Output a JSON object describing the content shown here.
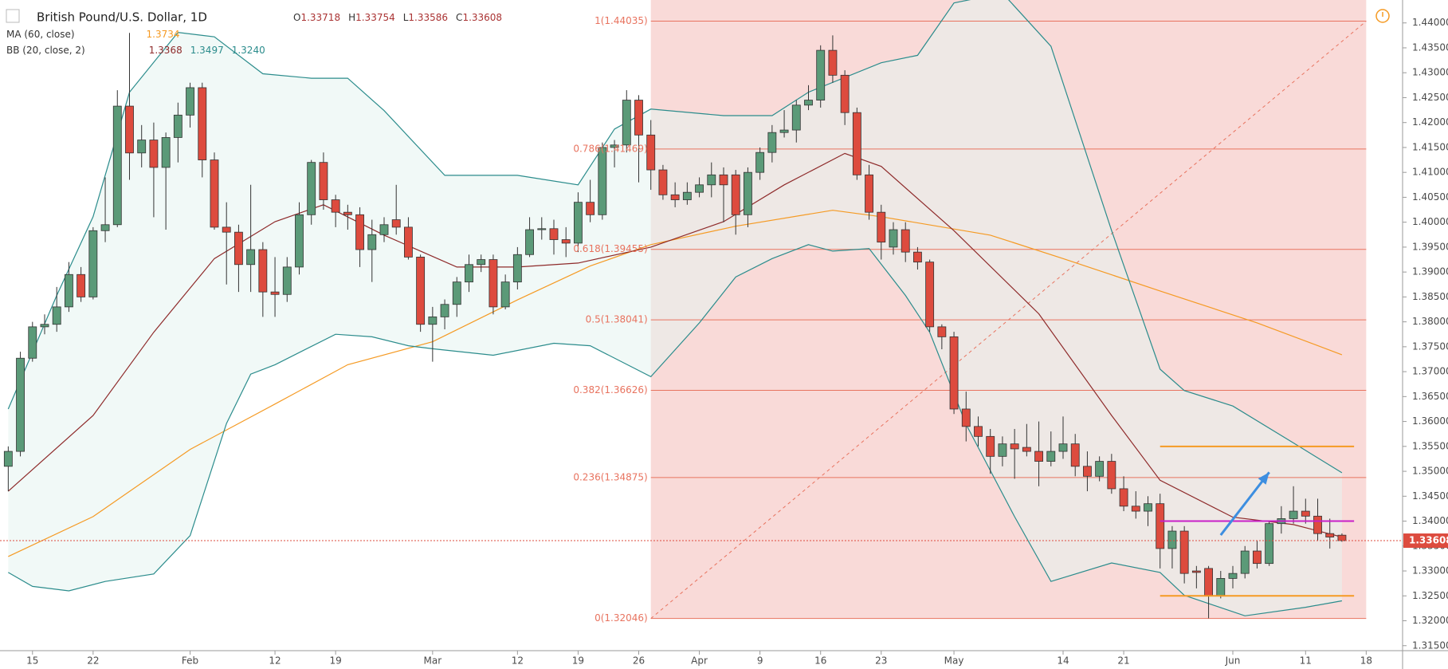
{
  "header": {
    "title": "British Pound/U.S. Dollar, 1D",
    "ohlc": [
      {
        "key": "O",
        "value": 1.33718
      },
      {
        "key": "H",
        "value": 1.33754
      },
      {
        "key": "L",
        "value": 1.33586
      },
      {
        "key": "C",
        "value": 1.33608
      }
    ],
    "ma": {
      "label": "MA (60, close)",
      "value": 1.3734
    },
    "bb": {
      "label": "BB (20, close, 2)",
      "values": [
        1.3368,
        1.3497,
        {
          "value": 1.324,
          "label": "1.3240"
        }
      ]
    }
  },
  "chart_data": {
    "type": "candlestick",
    "xlim": [
      -0.68,
      115
    ],
    "ylim": [
      1.314,
      1.4446
    ],
    "xticks": [
      {
        "value": 2,
        "label": "15"
      },
      {
        "value": 7,
        "label": "22"
      },
      {
        "value": 15,
        "label": "Feb"
      },
      {
        "value": 22,
        "label": "12"
      },
      {
        "value": 27,
        "label": "19"
      },
      {
        "value": 35,
        "label": "Mar"
      },
      {
        "value": 42,
        "label": "12"
      },
      {
        "value": 47,
        "label": "19"
      },
      {
        "value": 52,
        "label": "26"
      },
      {
        "value": 57,
        "label": "Apr"
      },
      {
        "value": 62,
        "label": "9"
      },
      {
        "value": 67,
        "label": "16"
      },
      {
        "value": 72,
        "label": "23"
      },
      {
        "value": 78,
        "label": "May"
      },
      {
        "value": 87,
        "label": "14"
      },
      {
        "value": 92,
        "label": "21"
      },
      {
        "value": 101,
        "label": "Jun"
      },
      {
        "value": 107,
        "label": "11"
      },
      {
        "value": 112,
        "label": "18"
      }
    ],
    "yticks": [
      {
        "value": 1.315,
        "label": "1.31500"
      },
      {
        "value": 1.32,
        "label": "1.32000"
      },
      {
        "value": 1.325,
        "label": "1.32500"
      },
      {
        "value": 1.33,
        "label": "1.33000"
      },
      {
        "value": 1.335,
        "label": "1.33500"
      },
      {
        "value": 1.34,
        "label": "1.34000"
      },
      {
        "value": 1.345,
        "label": "1.34500"
      },
      {
        "value": 1.35,
        "label": "1.35000"
      },
      {
        "value": 1.355,
        "label": "1.35500"
      },
      {
        "value": 1.36,
        "label": "1.36000"
      },
      {
        "value": 1.365,
        "label": "1.36500"
      },
      {
        "value": 1.37,
        "label": "1.37000"
      },
      {
        "value": 1.375,
        "label": "1.37500"
      },
      {
        "value": 1.38,
        "label": "1.38000"
      },
      {
        "value": 1.385,
        "label": "1.38500"
      },
      {
        "value": 1.39,
        "label": "1.39000"
      },
      {
        "value": 1.395,
        "label": "1.39500"
      },
      {
        "value": 1.4,
        "label": "1.40000"
      },
      {
        "value": 1.405,
        "label": "1.40500"
      },
      {
        "value": 1.41,
        "label": "1.41000"
      },
      {
        "value": 1.415,
        "label": "1.41500"
      },
      {
        "value": 1.42,
        "label": "1.42000"
      },
      {
        "value": 1.425,
        "label": "1.42500"
      },
      {
        "value": 1.43,
        "label": "1.43000"
      },
      {
        "value": 1.435,
        "label": "1.43500"
      },
      {
        "value": 1.44,
        "label": "1.44000"
      }
    ],
    "up_color": "#5b9a78",
    "down_color": "#dd4b3e",
    "open": [
      1.351,
      1.354,
      1.3727,
      1.379,
      1.3795,
      1.383,
      1.3895,
      1.385,
      1.3983,
      1.3995,
      1.4233,
      1.4139,
      1.4165,
      1.411,
      1.417,
      1.4215,
      1.427,
      1.4125,
      1.399,
      1.398,
      1.3915,
      1.3945,
      1.386,
      1.3855,
      1.391,
      1.4015,
      1.412,
      1.4045,
      1.402,
      1.4015,
      1.3945,
      1.3975,
      1.4005,
      1.399,
      1.393,
      1.3795,
      1.381,
      1.3835,
      1.388,
      1.3915,
      1.3925,
      1.383,
      1.388,
      1.3935,
      1.3985,
      1.3987,
      1.3965,
      1.3958,
      1.404,
      1.4015,
      1.415,
      1.4155,
      1.4245,
      1.4175,
      1.4105,
      1.4055,
      1.4045,
      1.406,
      1.4075,
      1.4095,
      1.4095,
      1.4015,
      1.41,
      1.414,
      1.418,
      1.4185,
      1.4235,
      1.4245,
      1.4345,
      1.4295,
      1.422,
      1.4095,
      1.402,
      1.395,
      1.3985,
      1.394,
      1.392,
      1.379,
      1.377,
      1.3625,
      1.359,
      1.357,
      1.353,
      1.3555,
      1.3548,
      1.354,
      1.352,
      1.354,
      1.3555,
      1.351,
      1.349,
      1.352,
      1.3465,
      1.343,
      1.342,
      1.3435,
      1.3345,
      1.338,
      1.33,
      1.3305,
      1.325,
      1.3285,
      1.3295,
      1.334,
      1.3315,
      1.3395,
      1.3405,
      1.342,
      1.341,
      1.3375,
      1.33718
    ],
    "high": [
      1.355,
      1.374,
      1.38,
      1.3815,
      1.387,
      1.392,
      1.391,
      1.399,
      1.409,
      1.4265,
      1.438,
      1.4195,
      1.42,
      1.418,
      1.424,
      1.428,
      1.428,
      1.414,
      1.404,
      1.3995,
      1.4075,
      1.396,
      1.393,
      1.393,
      1.404,
      1.4125,
      1.414,
      1.4055,
      1.4035,
      1.403,
      1.4005,
      1.401,
      1.4075,
      1.401,
      1.3935,
      1.383,
      1.3845,
      1.389,
      1.3935,
      1.3935,
      1.3935,
      1.3895,
      1.395,
      1.401,
      1.401,
      1.4005,
      1.399,
      1.406,
      1.4085,
      1.416,
      1.4165,
      1.4265,
      1.4255,
      1.4205,
      1.4115,
      1.408,
      1.408,
      1.409,
      1.412,
      1.411,
      1.4105,
      1.411,
      1.415,
      1.4195,
      1.4225,
      1.4245,
      1.4275,
      1.4355,
      1.4375,
      1.4305,
      1.423,
      1.4115,
      1.4035,
      1.4,
      1.4,
      1.395,
      1.3925,
      1.3795,
      1.378,
      1.366,
      1.361,
      1.3585,
      1.357,
      1.3585,
      1.3595,
      1.36,
      1.358,
      1.361,
      1.3575,
      1.354,
      1.353,
      1.3535,
      1.349,
      1.346,
      1.345,
      1.3455,
      1.339,
      1.339,
      1.331,
      1.331,
      1.33,
      1.331,
      1.335,
      1.336,
      1.34,
      1.343,
      1.347,
      1.3445,
      1.3445,
      1.3405,
      1.33754
    ],
    "low": [
      1.346,
      1.353,
      1.372,
      1.3775,
      1.378,
      1.382,
      1.384,
      1.3845,
      1.396,
      1.399,
      1.4085,
      1.411,
      1.401,
      1.3985,
      1.412,
      1.419,
      1.409,
      1.3985,
      1.3875,
      1.386,
      1.386,
      1.381,
      1.381,
      1.384,
      1.3895,
      1.3995,
      1.4025,
      1.399,
      1.3985,
      1.391,
      1.388,
      1.396,
      1.3975,
      1.3925,
      1.378,
      1.372,
      1.3785,
      1.381,
      1.386,
      1.39,
      1.3815,
      1.3825,
      1.3865,
      1.393,
      1.3965,
      1.3935,
      1.393,
      1.394,
      1.4,
      1.4005,
      1.411,
      1.414,
      1.408,
      1.4065,
      1.4045,
      1.403,
      1.4035,
      1.405,
      1.405,
      1.4,
      1.3975,
      1.399,
      1.4085,
      1.412,
      1.417,
      1.416,
      1.4225,
      1.423,
      1.428,
      1.4195,
      1.4085,
      1.4005,
      1.3925,
      1.3935,
      1.392,
      1.3905,
      1.378,
      1.3745,
      1.3615,
      1.356,
      1.355,
      1.3495,
      1.351,
      1.3485,
      1.353,
      1.347,
      1.351,
      1.3525,
      1.349,
      1.346,
      1.348,
      1.3455,
      1.342,
      1.3405,
      1.339,
      1.3305,
      1.3305,
      1.3275,
      1.3265,
      1.3205,
      1.3245,
      1.3265,
      1.3285,
      1.3305,
      1.331,
      1.3375,
      1.3395,
      1.3395,
      1.336,
      1.3345,
      1.33586
    ],
    "close": [
      1.354,
      1.3727,
      1.379,
      1.3795,
      1.383,
      1.3895,
      1.385,
      1.3983,
      1.3995,
      1.4233,
      1.4139,
      1.4165,
      1.411,
      1.417,
      1.4215,
      1.427,
      1.4125,
      1.399,
      1.398,
      1.3915,
      1.3945,
      1.386,
      1.3855,
      1.391,
      1.4015,
      1.412,
      1.4045,
      1.402,
      1.4015,
      1.3945,
      1.3975,
      1.3995,
      1.399,
      1.393,
      1.3795,
      1.381,
      1.3835,
      1.388,
      1.3915,
      1.3925,
      1.383,
      1.388,
      1.3935,
      1.3985,
      1.3987,
      1.3965,
      1.3958,
      1.404,
      1.4015,
      1.415,
      1.4155,
      1.4245,
      1.4175,
      1.4105,
      1.4055,
      1.4045,
      1.406,
      1.4075,
      1.4095,
      1.4075,
      1.4015,
      1.41,
      1.414,
      1.418,
      1.4185,
      1.4235,
      1.4245,
      1.4345,
      1.4295,
      1.422,
      1.4095,
      1.402,
      1.396,
      1.3985,
      1.394,
      1.392,
      1.379,
      1.377,
      1.3625,
      1.359,
      1.357,
      1.353,
      1.3555,
      1.3545,
      1.354,
      1.352,
      1.354,
      1.3555,
      1.351,
      1.349,
      1.352,
      1.3465,
      1.343,
      1.342,
      1.3435,
      1.3345,
      1.338,
      1.3295,
      1.3297,
      1.325,
      1.3285,
      1.3295,
      1.334,
      1.3315,
      1.3395,
      1.3405,
      1.342,
      1.341,
      1.3375,
      1.3368,
      1.33608
    ],
    "lines": [
      {
        "color": "#f59a23",
        "x": [
          0,
          7,
          15,
          22,
          28,
          35,
          42,
          48,
          53,
          60,
          68,
          72,
          81,
          87,
          95,
          103,
          110
        ],
        "values": [
          1.3329,
          1.3409,
          1.3544,
          1.3635,
          1.3714,
          1.376,
          1.3844,
          1.3912,
          1.3955,
          1.3992,
          1.4024,
          1.4011,
          1.3974,
          1.3927,
          1.3862,
          1.3798,
          1.3734
        ]
      },
      {
        "color": "#8e2a2a",
        "x": [
          0,
          7,
          12,
          17,
          22,
          26,
          31,
          37,
          42,
          47,
          53,
          59,
          64,
          69,
          72,
          78,
          85,
          91,
          95,
          101,
          106,
          110
        ],
        "values": [
          1.346,
          1.3612,
          1.3779,
          1.3927,
          1.4001,
          1.4035,
          1.3974,
          1.391,
          1.391,
          1.3918,
          1.395,
          1.4001,
          1.4075,
          1.4138,
          1.4112,
          1.3983,
          1.3816,
          1.3612,
          1.3482,
          1.3408,
          1.3393,
          1.3368
        ]
      },
      {
        "color": "#2b8c8c",
        "x": [
          0,
          4,
          7,
          10,
          14,
          17,
          21,
          25,
          28,
          31,
          36,
          42,
          47,
          50,
          53,
          59,
          63,
          66,
          72,
          75,
          78,
          82,
          86,
          91,
          95,
          97,
          101,
          106,
          110
        ],
        "values": [
          1.3625,
          1.3853,
          1.4011,
          1.4261,
          1.4381,
          1.4372,
          1.4298,
          1.4289,
          1.4289,
          1.4224,
          1.4094,
          1.4094,
          1.4075,
          1.4187,
          1.4227,
          1.4214,
          1.4214,
          1.4261,
          1.432,
          1.4335,
          1.444,
          1.446,
          1.4353,
          1.3983,
          1.3705,
          1.3662,
          1.3631,
          1.3557,
          1.3497
        ]
      },
      {
        "color": "#2b8c8c",
        "x": [
          0,
          2,
          5,
          8,
          12,
          15,
          18,
          20,
          22,
          27,
          30,
          33,
          35,
          40,
          45,
          48,
          53,
          57,
          60,
          63,
          66,
          68,
          71,
          74,
          76,
          79,
          83,
          86,
          91,
          95,
          97,
          102,
          107,
          110
        ],
        "values": [
          1.3297,
          1.3269,
          1.326,
          1.3279,
          1.3294,
          1.3371,
          1.3596,
          1.3695,
          1.3714,
          1.3775,
          1.377,
          1.3752,
          1.3746,
          1.3733,
          1.3757,
          1.3752,
          1.369,
          1.3798,
          1.389,
          1.3927,
          1.3955,
          1.3942,
          1.3947,
          1.3853,
          1.3779,
          1.3594,
          1.3409,
          1.3279,
          1.3316,
          1.3297,
          1.3251,
          1.321,
          1.3227,
          1.324
        ]
      }
    ],
    "band_fill": "#e6f4f1",
    "fib": {
      "x": [
        53,
        112
      ],
      "color": "#e8735f",
      "fill": "#f9dad8",
      "levels": [
        {
          "value": 1.44035,
          "label": "1(1.44035)"
        },
        {
          "value": 1.41469,
          "label": "0.786(1.41469)"
        },
        {
          "value": 1.39455,
          "label": "0.618(1.39455)"
        },
        {
          "value": 1.38041,
          "label": "0.5(1.38041)"
        },
        {
          "value": 1.36626,
          "label": "0.382(1.36626)"
        },
        {
          "value": 1.34875,
          "label": "0.236(1.34875)"
        },
        {
          "value": 1.32046,
          "label": "0(1.32046)"
        }
      ]
    },
    "hlines": [
      {
        "color": "#f59a23",
        "value": 1.355,
        "x": [
          95,
          111
        ]
      },
      {
        "color": "#c81fc8",
        "value": 1.34,
        "x": [
          95,
          111
        ]
      },
      {
        "color": "#f59a23",
        "value": 1.325,
        "x": [
          95,
          111
        ]
      }
    ],
    "arrow": {
      "color": "#3d8ee0",
      "x": [
        100,
        104
      ],
      "values": [
        1.3372,
        1.3498
      ]
    },
    "last_price_color": "#dd4b3e"
  }
}
